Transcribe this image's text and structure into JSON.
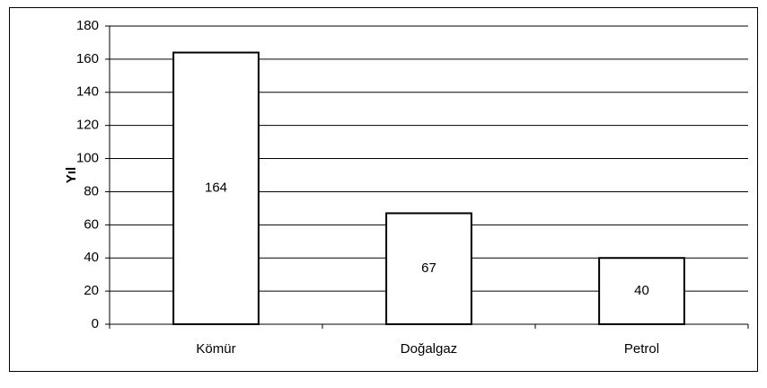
{
  "chart_data": {
    "type": "bar",
    "y_label": "Yıl",
    "categories": [
      "Kömür",
      "Doğalgaz",
      "Petrol"
    ],
    "values": [
      164,
      67,
      40
    ],
    "color": "#ffffff",
    "ylim": [
      0,
      180
    ],
    "yticks": [
      0,
      20,
      40,
      60,
      80,
      100,
      120,
      140,
      160,
      180
    ],
    "grid": true
  }
}
